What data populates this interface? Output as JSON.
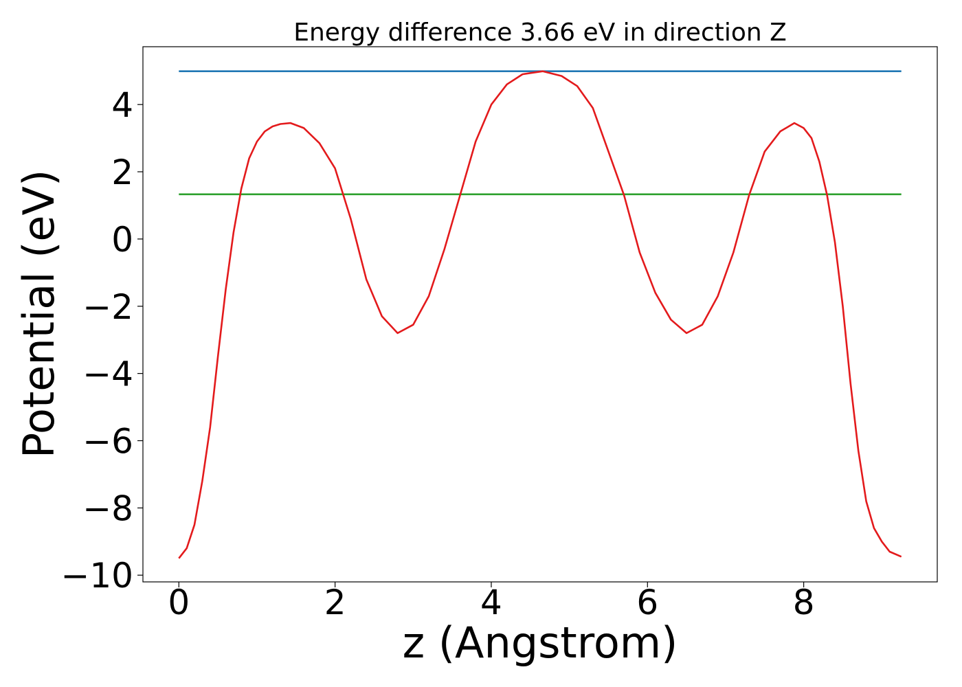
{
  "chart_data": {
    "type": "line",
    "title": "Energy difference 3.66 eV in direction Z",
    "xlabel": "z (Angstrom)",
    "ylabel": "Potential (eV)",
    "xlim": [
      -0.46,
      9.71
    ],
    "ylim": [
      -10.2,
      5.72
    ],
    "x_ticks": [
      0,
      2,
      4,
      6,
      8
    ],
    "x_tick_labels": [
      "0",
      "2",
      "4",
      "6",
      "8"
    ],
    "y_ticks": [
      -10,
      -8,
      -6,
      -4,
      -2,
      0,
      2,
      4
    ],
    "y_tick_labels": [
      "−10",
      "−8",
      "−6",
      "−4",
      "−2",
      "0",
      "2",
      "4"
    ],
    "grid": false,
    "series": [
      {
        "color": "#1f77b4",
        "x": [
          0,
          9.25
        ],
        "y": [
          4.99,
          4.99
        ]
      },
      {
        "color": "#2ca02c",
        "x": [
          0,
          9.25
        ],
        "y": [
          1.33,
          1.33
        ]
      },
      {
        "color": "#e31a1c",
        "x": [
          0,
          0.1,
          0.2,
          0.3,
          0.4,
          0.5,
          0.6,
          0.7,
          0.8,
          0.9,
          1.0,
          1.1,
          1.2,
          1.3,
          1.43,
          1.6,
          1.8,
          2.0,
          2.2,
          2.4,
          2.6,
          2.8,
          3.0,
          3.2,
          3.4,
          3.6,
          3.8,
          4.0,
          4.2,
          4.4,
          4.66,
          4.9,
          5.1,
          5.3,
          5.5,
          5.7,
          5.9,
          6.1,
          6.3,
          6.5,
          6.7,
          6.9,
          7.1,
          7.3,
          7.5,
          7.7,
          7.88,
          8.0,
          8.1,
          8.2,
          8.3,
          8.4,
          8.5,
          8.6,
          8.7,
          8.8,
          8.9,
          9.0,
          9.1,
          9.25
        ],
        "y": [
          -9.5,
          -9.2,
          -8.5,
          -7.2,
          -5.6,
          -3.5,
          -1.5,
          0.2,
          1.5,
          2.4,
          2.9,
          3.2,
          3.35,
          3.42,
          3.45,
          3.3,
          2.85,
          2.1,
          0.6,
          -1.2,
          -2.3,
          -2.8,
          -2.55,
          -1.7,
          -0.3,
          1.3,
          2.9,
          4.0,
          4.6,
          4.9,
          4.99,
          4.85,
          4.55,
          3.9,
          2.6,
          1.3,
          -0.4,
          -1.6,
          -2.4,
          -2.8,
          -2.55,
          -1.7,
          -0.4,
          1.3,
          2.6,
          3.2,
          3.45,
          3.3,
          3.0,
          2.3,
          1.3,
          -0.1,
          -2.0,
          -4.3,
          -6.3,
          -7.8,
          -8.6,
          -9.0,
          -9.3,
          -9.45
        ]
      }
    ]
  }
}
